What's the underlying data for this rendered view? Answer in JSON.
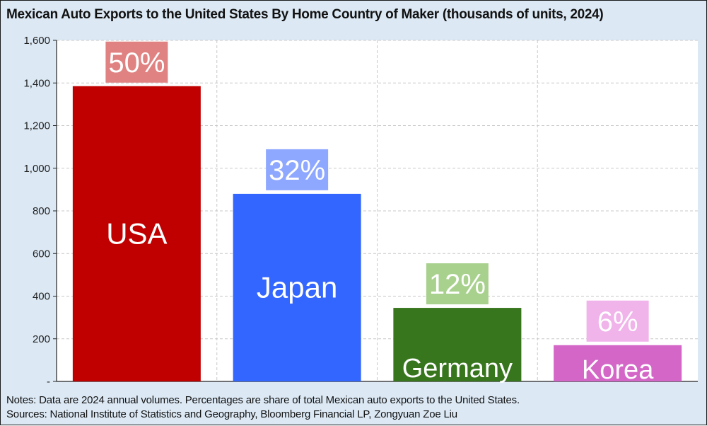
{
  "title": "Mexican Auto Exports to the United States By Home Country of Maker (thousands of units, 2024)",
  "notes": "Notes: Data are 2024 annual volumes. Percentages are share of total Mexican auto exports to the United States.",
  "sources": "Sources: National Institute of Statistics and Geography, Bloomberg Financial LP, Zongyuan Zoe Liu",
  "chart_data": {
    "type": "bar",
    "title": "Mexican Auto Exports to the United States By Home Country of Maker (thousands of units, 2024)",
    "categories": [
      "USA",
      "Japan",
      "Germany",
      "Korea"
    ],
    "values": [
      1385,
      880,
      345,
      170
    ],
    "share_labels": [
      "50%",
      "32%",
      "12%",
      "6%"
    ],
    "bar_colors": [
      "#c00000",
      "#3366ff",
      "#38761d",
      "#d466c8"
    ],
    "share_box_colors": [
      "#e08282",
      "#8fa8ff",
      "#a9d18e",
      "#f0b3ea"
    ],
    "ylim": [
      0,
      1600
    ],
    "yticks": [
      0,
      200,
      400,
      600,
      800,
      1000,
      1200,
      1400,
      1600
    ],
    "ytick_labels": [
      "-",
      "200",
      "400",
      "600",
      "800",
      "1,000",
      "1,200",
      "1,400",
      "1,600"
    ],
    "grid": true
  }
}
